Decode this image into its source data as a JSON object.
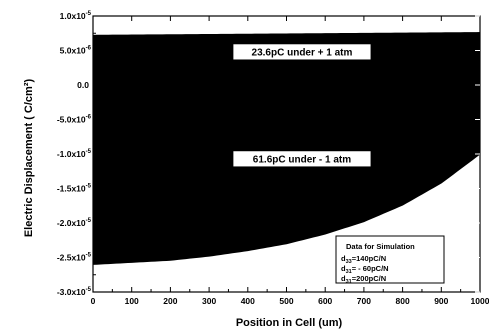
{
  "chart_data": {
    "type": "area",
    "title": "",
    "xlabel": "Position in Cell (um)",
    "ylabel": "Electric Displacement ( C/cm²)",
    "xlim": [
      0,
      1000
    ],
    "ylim": [
      -3e-05,
      1e-05
    ],
    "xticks": [
      "0",
      "100",
      "200",
      "300",
      "400",
      "500",
      "600",
      "700",
      "800",
      "900",
      "1000"
    ],
    "yticks": [
      {
        "base": "1.0x10",
        "exp": "-5",
        "value": 1e-05
      },
      {
        "base": "5.0x10",
        "exp": "-6",
        "value": 5e-06
      },
      {
        "base": "0.0",
        "exp": "",
        "value": 0
      },
      {
        "base": "-5.0x10",
        "exp": "-6",
        "value": -5e-06
      },
      {
        "base": "-1.0x10",
        "exp": "-5",
        "value": -1e-05
      },
      {
        "base": "-1.5x10",
        "exp": "-5",
        "value": -1.5e-05
      },
      {
        "base": "-2.0x10",
        "exp": "-5",
        "value": -2e-05
      },
      {
        "base": "-2.5x10",
        "exp": "-5",
        "value": -2.5e-05
      },
      {
        "base": "-3.0x10",
        "exp": "-5",
        "value": -3e-05
      }
    ],
    "upper_boundary": {
      "x": [
        0,
        100,
        200,
        300,
        400,
        500,
        600,
        700,
        800,
        900,
        1000
      ],
      "y": [
        7.2e-06,
        7.24e-06,
        7.28e-06,
        7.32e-06,
        7.36e-06,
        7.4e-06,
        7.44e-06,
        7.48e-06,
        7.52e-06,
        7.56e-06,
        7.6e-06
      ]
    },
    "lower_boundary": {
      "x": [
        0,
        100,
        200,
        300,
        400,
        500,
        600,
        700,
        800,
        900,
        1000
      ],
      "y": [
        -2.6e-05,
        -2.57e-05,
        -2.54e-05,
        -2.48e-05,
        -2.4e-05,
        -2.3e-05,
        -2.16e-05,
        -1.98e-05,
        -1.74e-05,
        -1.42e-05,
        -1e-05
      ]
    },
    "annotations": [
      {
        "text": "23.6pC under  + 1 atm",
        "x": 540,
        "y": 4.8e-06
      },
      {
        "text": "61.6pC under  - 1 atm",
        "x": 540,
        "y": -1.07e-05
      }
    ],
    "legend_box": {
      "title": "Data for Simulation",
      "lines": [
        {
          "pre": "d",
          "sub": "33",
          "post": "=140pC/N"
        },
        {
          "pre": "d",
          "sub": "31",
          "post": "= - 60pC/N"
        },
        {
          "pre": "d",
          "sub": "31",
          "post": "=200pC/N"
        }
      ]
    },
    "colors": {
      "fill": "#000000",
      "annotation_bg": "#ffffff"
    }
  }
}
